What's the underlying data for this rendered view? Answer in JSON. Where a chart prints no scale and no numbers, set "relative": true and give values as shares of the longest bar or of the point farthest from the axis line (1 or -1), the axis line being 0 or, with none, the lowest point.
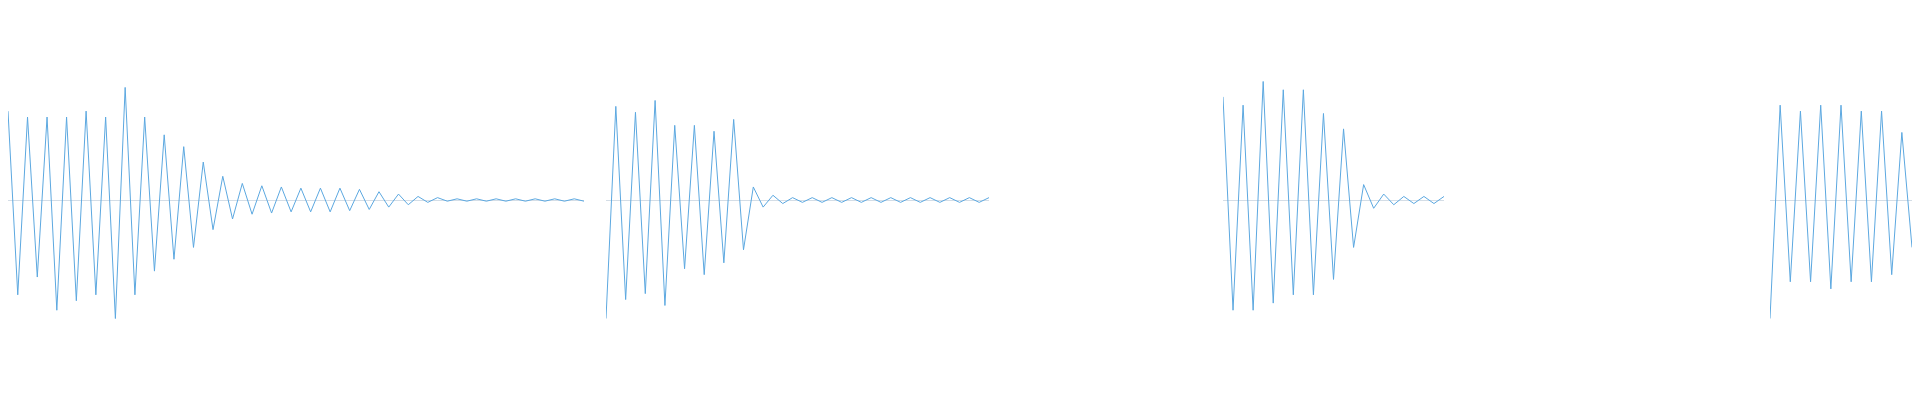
{
  "chart_data": [
    {
      "type": "line",
      "relative": true,
      "color": "#5ca8e0",
      "legend": false,
      "marker": "none",
      "line_style": "solid",
      "categories": [
        null,
        null,
        null,
        null,
        null,
        null,
        null,
        null,
        null,
        null,
        null,
        null,
        null,
        null,
        null,
        null,
        null,
        null,
        null,
        null,
        null,
        null,
        null,
        null,
        null,
        null,
        null,
        null,
        null,
        null,
        null,
        null,
        null,
        null,
        null,
        null,
        null,
        null,
        null,
        null,
        null,
        null,
        null,
        null,
        null,
        null,
        null,
        null,
        null,
        null,
        null,
        null,
        null,
        null,
        null,
        null,
        null,
        null,
        null,
        null
      ],
      "values": [
        0.75,
        -0.8,
        0.7,
        -0.65,
        0.7,
        -0.93,
        0.7,
        -0.85,
        0.75,
        -0.8,
        0.7,
        -1.0,
        0.95,
        -0.8,
        0.7,
        -0.6,
        0.55,
        -0.5,
        0.45,
        -0.4,
        0.32,
        -0.25,
        0.2,
        -0.16,
        0.14,
        -0.12,
        0.12,
        -0.11,
        0.11,
        -0.1,
        0.1,
        -0.1,
        0.1,
        -0.1,
        0.1,
        -0.09,
        0.09,
        -0.08,
        0.07,
        -0.06,
        0.05,
        -0.04,
        0.03,
        -0.02,
        0.02,
        -0.01,
        0.01,
        -0.01,
        0.01,
        -0.01,
        0.01,
        -0.01,
        0.01,
        -0.01,
        0.01,
        -0.01,
        0.01,
        -0.01,
        0.01,
        -0.01
      ]
    },
    {
      "type": "line",
      "relative": true,
      "color": "#5ca8e0",
      "legend": false,
      "marker": "none",
      "line_style": "solid",
      "categories": [
        null,
        null,
        null,
        null,
        null,
        null,
        null,
        null,
        null,
        null,
        null,
        null,
        null,
        null,
        null,
        null,
        null,
        null,
        null,
        null,
        null,
        null,
        null,
        null,
        null,
        null,
        null,
        null,
        null,
        null,
        null,
        null,
        null,
        null,
        null,
        null,
        null,
        null,
        null,
        null
      ],
      "values": [
        -1.0,
        0.79,
        -0.84,
        0.74,
        -0.79,
        0.84,
        -0.89,
        0.63,
        -0.58,
        0.63,
        -0.63,
        0.58,
        -0.53,
        0.68,
        -0.42,
        0.11,
        -0.06,
        0.04,
        -0.03,
        0.02,
        -0.02,
        0.02,
        -0.02,
        0.02,
        -0.02,
        0.02,
        -0.02,
        0.02,
        -0.02,
        0.02,
        -0.02,
        0.02,
        -0.02,
        0.02,
        -0.02,
        0.02,
        -0.02,
        0.02,
        -0.02,
        0.02
      ]
    },
    {
      "type": "line",
      "relative": true,
      "color": "#5ca8e0",
      "legend": false,
      "marker": "none",
      "line_style": "solid",
      "categories": [
        null,
        null,
        null,
        null,
        null,
        null,
        null,
        null,
        null,
        null,
        null,
        null,
        null,
        null,
        null,
        null,
        null,
        null,
        null,
        null,
        null,
        null,
        null
      ],
      "values": [
        0.87,
        -0.93,
        0.8,
        -0.93,
        1.0,
        -0.87,
        0.93,
        -0.8,
        0.93,
        -0.8,
        0.73,
        -0.67,
        0.6,
        -0.4,
        0.13,
        -0.07,
        0.05,
        -0.04,
        0.03,
        -0.03,
        0.03,
        -0.03,
        0.03
      ]
    },
    {
      "type": "line",
      "relative": true,
      "color": "#5ca8e0",
      "legend": false,
      "marker": "none",
      "line_style": "solid",
      "categories": [
        null,
        null,
        null,
        null,
        null,
        null,
        null,
        null,
        null,
        null,
        null,
        null,
        null,
        null,
        null
      ],
      "values": [
        -1.0,
        0.8,
        -0.69,
        0.75,
        -0.69,
        0.8,
        -0.75,
        0.8,
        -0.69,
        0.75,
        -0.69,
        0.75,
        -0.63,
        0.57,
        -0.4
      ]
    }
  ]
}
